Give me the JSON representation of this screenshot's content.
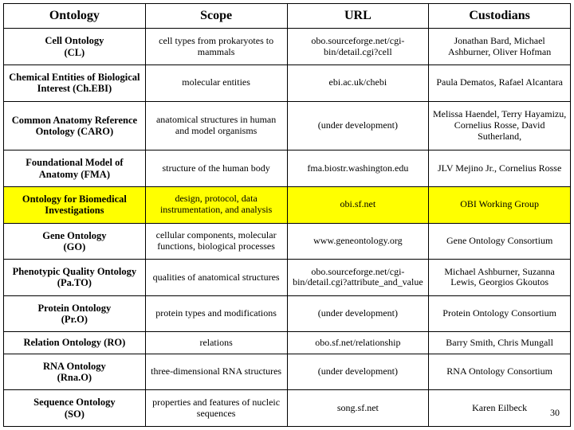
{
  "table": {
    "columns": [
      "Ontology",
      "Scope",
      "URL",
      "Custodians"
    ],
    "highlight_row_index": 4,
    "highlight_color": "#ffff00",
    "border_color": "#000000",
    "header_fontsize": 16,
    "cell_fontsize": 12,
    "rows": [
      {
        "ontology": "Cell Ontology\n(CL)",
        "scope": "cell types from prokaryotes to mammals",
        "url": "obo.sourceforge.net/cgi-bin/detail.cgi?cell",
        "custodians": "Jonathan Bard, Michael Ashburner, Oliver Hofman"
      },
      {
        "ontology": "Chemical Entities of Biological Interest (Ch.EBI)",
        "scope": "molecular entities",
        "url": "ebi.ac.uk/chebi",
        "custodians": "Paula Dematos, Rafael Alcantara"
      },
      {
        "ontology": "Common Anatomy Reference Ontology (CARO)",
        "scope": "anatomical structures in human and model organisms",
        "url": "(under development)",
        "custodians": "Melissa Haendel, Terry Hayamizu, Cornelius Rosse, David Sutherland,"
      },
      {
        "ontology": "Foundational Model of Anatomy (FMA)",
        "scope": "structure of the human body",
        "url": "fma.biostr.washington.edu",
        "custodians": "JLV Mejino Jr., Cornelius Rosse"
      },
      {
        "ontology": "Ontology for Biomedical Investigations",
        "scope": "design, protocol, data instrumentation, and analysis",
        "url": "obi.sf.net",
        "custodians": "OBI Working Group"
      },
      {
        "ontology": "Gene Ontology\n(GO)",
        "scope": "cellular components, molecular functions, biological processes",
        "url": "www.geneontology.org",
        "custodians": "Gene Ontology Consortium"
      },
      {
        "ontology": "Phenotypic Quality Ontology\n(Pa.TO)",
        "scope": "qualities of anatomical structures",
        "url": "obo.sourceforge.net/cgi-bin/detail.cgi?attribute_and_value",
        "custodians": "Michael Ashburner, Suzanna Lewis, Georgios Gkoutos"
      },
      {
        "ontology": "Protein Ontology\n(Pr.O)",
        "scope": "protein types and modifications",
        "url": "(under development)",
        "custodians": "Protein Ontology Consortium"
      },
      {
        "ontology": "Relation Ontology (RO)",
        "scope": "relations",
        "url": "obo.sf.net/relationship",
        "custodians": "Barry Smith, Chris Mungall"
      },
      {
        "ontology": "RNA Ontology\n(Rna.O)",
        "scope": "three-dimensional RNA structures",
        "url": "(under development)",
        "custodians": "RNA Ontology Consortium"
      },
      {
        "ontology": "Sequence Ontology\n(SO)",
        "scope": "properties and features of nucleic sequences",
        "url": "song.sf.net",
        "custodians": "Karen Eilbeck"
      }
    ]
  },
  "page_number": "30"
}
